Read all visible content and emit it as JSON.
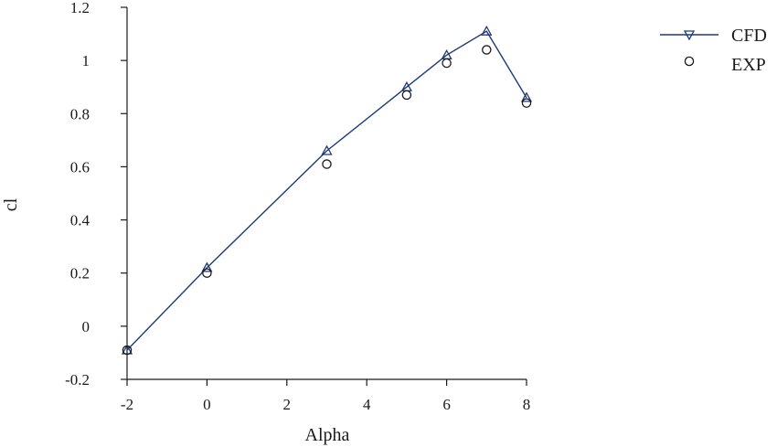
{
  "chart_data": {
    "type": "line",
    "xlabel": "Alpha",
    "ylabel": "cl",
    "xlim": [
      -2,
      8
    ],
    "ylim": [
      -0.2,
      1.2
    ],
    "x_ticks": [
      -2,
      0,
      2,
      4,
      6,
      8
    ],
    "y_ticks": [
      -0.2,
      0,
      0.2,
      0.4,
      0.6,
      0.8,
      1,
      1.2
    ],
    "x_tick_labels": [
      "-2",
      "0",
      "2",
      "4",
      "6",
      "8"
    ],
    "y_tick_labels": [
      "-0.2",
      "0",
      "0.2",
      "0.4",
      "0.6",
      "0.8",
      "1",
      "1.2"
    ],
    "grid": false,
    "legend_position": "top-right",
    "series": [
      {
        "name": "CFD",
        "style": "line-triangle-down",
        "color": "#1f3a7a",
        "x": [
          -2,
          0,
          3,
          5,
          6,
          7,
          8
        ],
        "y": [
          -0.09,
          0.22,
          0.66,
          0.9,
          1.02,
          1.11,
          0.86
        ]
      },
      {
        "name": "EXP",
        "style": "circle-open",
        "color": "#1a1a1a",
        "x": [
          -2,
          0,
          3,
          5,
          6,
          7,
          8
        ],
        "y": [
          -0.09,
          0.2,
          0.61,
          0.87,
          0.99,
          1.04,
          0.84
        ]
      }
    ]
  }
}
